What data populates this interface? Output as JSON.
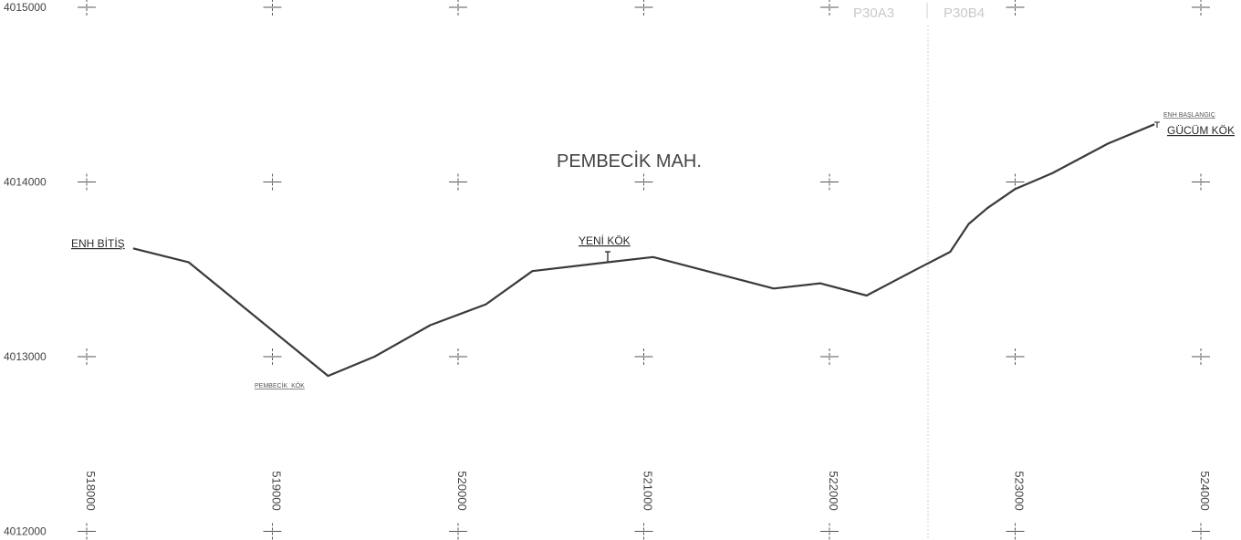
{
  "grid": {
    "eastings": [
      518000,
      519000,
      520000,
      521000,
      522000,
      523000,
      524000
    ],
    "northings": [
      4015000,
      4014000,
      4013000,
      4012000
    ],
    "northing_labels": [
      "4015000",
      "4014000",
      "4013000",
      "4012000"
    ],
    "easting_labels": [
      "518000",
      "519000",
      "520000",
      "521000",
      "522000",
      "523000",
      "524000"
    ]
  },
  "sheets": {
    "left": "P30A3",
    "right": "P30B4"
  },
  "area_label": "PEMBECİK MAH.",
  "points": {
    "end": {
      "label": "ENH BİTİŞ"
    },
    "pembecik": {
      "label": "PEMBECİK_KÖK"
    },
    "yeni": {
      "label": "YENİ KÖK"
    },
    "start_small": {
      "label": "ENH BAŞLANGIÇ"
    },
    "gucum": {
      "label": "GÜCÜM KÖK"
    }
  },
  "route": [
    [
      518250,
      4013620
    ],
    [
      518550,
      4013540
    ],
    [
      519300,
      4012890
    ],
    [
      519550,
      4013000
    ],
    [
      519850,
      4013180
    ],
    [
      520150,
      4013300
    ],
    [
      520400,
      4013490
    ],
    [
      520800,
      4013540
    ],
    [
      521050,
      4013570
    ],
    [
      521700,
      4013390
    ],
    [
      521950,
      4013420
    ],
    [
      522200,
      4013350
    ],
    [
      522450,
      4013490
    ],
    [
      522650,
      4013600
    ],
    [
      522750,
      4013760
    ],
    [
      522850,
      4013850
    ],
    [
      523000,
      4013960
    ],
    [
      523200,
      4014050
    ],
    [
      523500,
      4014220
    ],
    [
      523750,
      4014330
    ]
  ],
  "colors": {
    "route": "#3a3a3a",
    "grid": "#555555",
    "sheet_line": "#cfcfcf"
  }
}
